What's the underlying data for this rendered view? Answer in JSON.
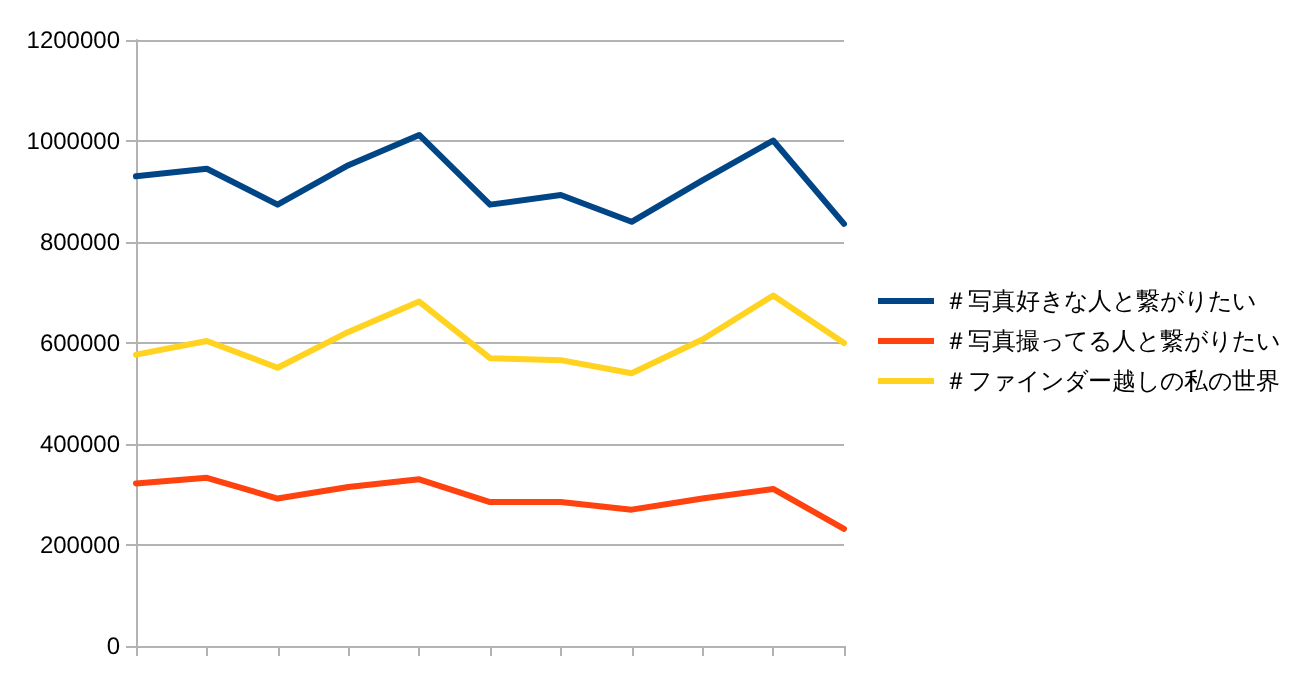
{
  "chart_data": {
    "type": "line",
    "categories": [
      null,
      null,
      null,
      null,
      null,
      null,
      null,
      null,
      null,
      null,
      null
    ],
    "series": [
      {
        "name": "＃写真好きな人と繋がりたい",
        "color": "#004586",
        "values": [
          930000,
          945000,
          874000,
          952000,
          1012000,
          874000,
          893000,
          840000,
          922000,
          1001000,
          836000
        ]
      },
      {
        "name": "＃写真撮ってる人と繋がりたい",
        "color": "#ff420e",
        "values": [
          322000,
          333000,
          292000,
          315000,
          330000,
          285000,
          285000,
          270000,
          292000,
          311000,
          232000
        ]
      },
      {
        "name": "＃ファインダー越しの私の世界",
        "color": "#ffd320",
        "values": [
          577000,
          604000,
          551000,
          622000,
          682000,
          570000,
          566000,
          540000,
          607000,
          694000,
          600000
        ]
      }
    ],
    "ylim": [
      0,
      1200000
    ],
    "yticks": [
      0,
      200000,
      400000,
      600000,
      800000,
      1000000,
      1200000
    ],
    "grid": "y",
    "legend": "right",
    "marker": "none",
    "line_style": "solid"
  }
}
